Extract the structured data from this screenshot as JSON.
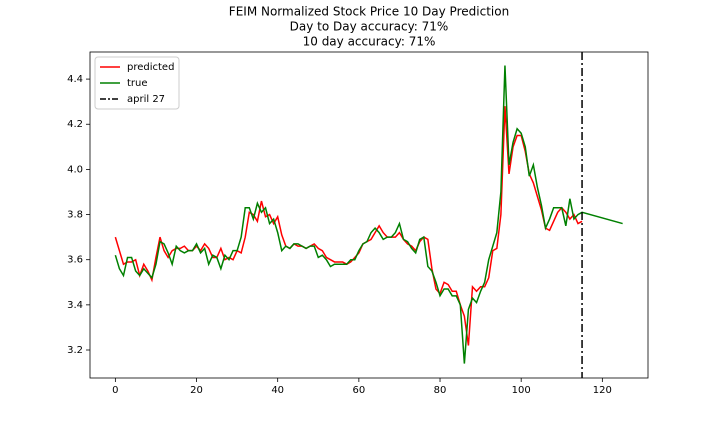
{
  "chart_data": {
    "type": "line",
    "title": "FEIM Normalized Stock Price 10 Day Prediction",
    "subtitle": [
      "Day to Day accuracy: 71%",
      "10 day accuracy: 71%"
    ],
    "series": [
      {
        "name": "predicted",
        "color": "#ff0000",
        "x": [
          0,
          1,
          2,
          3,
          4,
          5,
          6,
          7,
          8,
          9,
          10,
          11,
          12,
          13,
          14,
          15,
          16,
          17,
          18,
          19,
          20,
          21,
          22,
          23,
          24,
          25,
          26,
          27,
          28,
          29,
          30,
          31,
          32,
          33,
          34,
          35,
          36,
          37,
          38,
          39,
          40,
          41,
          42,
          43,
          44,
          45,
          46,
          47,
          48,
          49,
          50,
          51,
          52,
          53,
          54,
          55,
          56,
          57,
          58,
          59,
          60,
          61,
          62,
          63,
          64,
          65,
          66,
          67,
          68,
          69,
          70,
          71,
          72,
          73,
          74,
          75,
          76,
          77,
          78,
          79,
          80,
          81,
          82,
          83,
          84,
          85,
          86,
          87,
          88,
          89,
          90,
          91,
          92,
          93,
          94,
          95,
          96,
          97,
          98,
          99,
          100,
          101,
          102,
          103,
          104,
          105,
          106,
          107,
          108,
          109,
          110,
          111,
          112,
          113,
          114,
          115
        ],
        "values": [
          3.7,
          3.64,
          3.58,
          3.59,
          3.59,
          3.6,
          3.53,
          3.58,
          3.55,
          3.51,
          3.61,
          3.7,
          3.64,
          3.61,
          3.64,
          3.65,
          3.65,
          3.66,
          3.64,
          3.64,
          3.66,
          3.64,
          3.67,
          3.65,
          3.61,
          3.61,
          3.65,
          3.6,
          3.61,
          3.6,
          3.64,
          3.63,
          3.7,
          3.81,
          3.8,
          3.77,
          3.86,
          3.79,
          3.8,
          3.76,
          3.79,
          3.71,
          3.66,
          3.65,
          3.67,
          3.66,
          3.66,
          3.65,
          3.66,
          3.67,
          3.65,
          3.64,
          3.61,
          3.6,
          3.59,
          3.59,
          3.59,
          3.58,
          3.59,
          3.61,
          3.63,
          3.67,
          3.68,
          3.69,
          3.72,
          3.75,
          3.72,
          3.7,
          3.7,
          3.7,
          3.72,
          3.69,
          3.67,
          3.66,
          3.64,
          3.68,
          3.7,
          3.69,
          3.56,
          3.47,
          3.45,
          3.5,
          3.49,
          3.46,
          3.46,
          3.4,
          3.35,
          3.22,
          3.48,
          3.46,
          3.48,
          3.48,
          3.52,
          3.64,
          3.65,
          3.8,
          4.28,
          3.98,
          4.1,
          4.15,
          4.15,
          4.08,
          3.98,
          3.94,
          3.88,
          3.82,
          3.74,
          3.73,
          3.77,
          3.81,
          3.83,
          3.81,
          3.78,
          3.8,
          3.76,
          3.77
        ]
      },
      {
        "name": "true",
        "color": "#008000",
        "x": [
          0,
          1,
          2,
          3,
          4,
          5,
          6,
          7,
          8,
          9,
          10,
          11,
          12,
          13,
          14,
          15,
          16,
          17,
          18,
          19,
          20,
          21,
          22,
          23,
          24,
          25,
          26,
          27,
          28,
          29,
          30,
          31,
          32,
          33,
          34,
          35,
          36,
          37,
          38,
          39,
          40,
          41,
          42,
          43,
          44,
          45,
          46,
          47,
          48,
          49,
          50,
          51,
          52,
          53,
          54,
          55,
          56,
          57,
          58,
          59,
          60,
          61,
          62,
          63,
          64,
          65,
          66,
          67,
          68,
          69,
          70,
          71,
          72,
          73,
          74,
          75,
          76,
          77,
          78,
          79,
          80,
          81,
          82,
          83,
          84,
          85,
          86,
          87,
          88,
          89,
          90,
          91,
          92,
          93,
          94,
          95,
          96,
          97,
          98,
          99,
          100,
          101,
          102,
          103,
          104,
          105,
          106,
          107,
          108,
          109,
          110,
          111,
          112,
          113,
          114,
          115,
          125
        ],
        "values": [
          3.62,
          3.56,
          3.53,
          3.61,
          3.61,
          3.55,
          3.53,
          3.56,
          3.54,
          3.52,
          3.58,
          3.68,
          3.67,
          3.63,
          3.58,
          3.66,
          3.64,
          3.63,
          3.64,
          3.64,
          3.67,
          3.63,
          3.65,
          3.58,
          3.62,
          3.61,
          3.56,
          3.62,
          3.6,
          3.64,
          3.64,
          3.7,
          3.83,
          3.83,
          3.78,
          3.85,
          3.81,
          3.83,
          3.76,
          3.78,
          3.72,
          3.64,
          3.66,
          3.65,
          3.67,
          3.67,
          3.66,
          3.65,
          3.66,
          3.66,
          3.61,
          3.62,
          3.6,
          3.57,
          3.58,
          3.58,
          3.58,
          3.58,
          3.6,
          3.6,
          3.64,
          3.67,
          3.68,
          3.72,
          3.74,
          3.72,
          3.69,
          3.7,
          3.7,
          3.72,
          3.76,
          3.69,
          3.68,
          3.65,
          3.63,
          3.69,
          3.7,
          3.57,
          3.55,
          3.5,
          3.44,
          3.47,
          3.47,
          3.44,
          3.44,
          3.4,
          3.14,
          3.38,
          3.43,
          3.41,
          3.46,
          3.5,
          3.6,
          3.66,
          3.72,
          3.9,
          4.46,
          4.02,
          4.12,
          4.18,
          4.16,
          4.1,
          3.97,
          4.02,
          3.92,
          3.84,
          3.74,
          3.78,
          3.83,
          3.83,
          3.83,
          3.75,
          3.87,
          3.78,
          3.8,
          3.81,
          3.76
        ]
      }
    ],
    "reference_line": {
      "name": "april 27",
      "x": 115,
      "color": "#000000"
    },
    "xlim": [
      -6.25,
      131.25
    ],
    "xticks": [
      0,
      20,
      40,
      60,
      80,
      100,
      120
    ],
    "ylim": [
      3.076,
      4.52
    ],
    "yticks": [
      3.2,
      3.4,
      3.6,
      3.8,
      {
        "value": 4,
        "label": "4.0"
      },
      4.2,
      4.4
    ],
    "legend": "upper left",
    "grid": false
  }
}
